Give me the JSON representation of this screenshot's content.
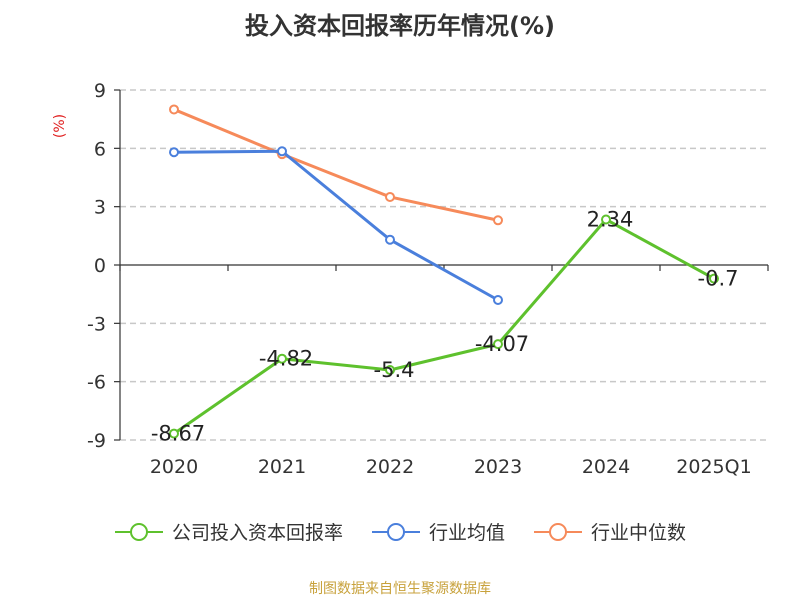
{
  "colors": {
    "company": "#5ec12d",
    "industry_avg": "#4a7fdc",
    "industry_median": "#f68a5a",
    "ylabel": "#e02020"
  },
  "chart_data": {
    "type": "line",
    "title": "投入资本回报率历年情况(%)",
    "ylabel": "(%)",
    "categories": [
      "2020",
      "2021",
      "2022",
      "2023",
      "2024",
      "2025Q1"
    ],
    "yticks": [
      "9",
      "6",
      "3",
      "0",
      "-3",
      "-6",
      "-9"
    ],
    "ylim": [
      -9,
      9
    ],
    "grid": true,
    "legend_position": "bottom",
    "series": [
      {
        "name": "公司投入资本回报率",
        "values": [
          -8.67,
          -4.82,
          -5.4,
          -4.07,
          2.34,
          -0.7
        ],
        "labels": [
          "-8.67",
          "-4.82",
          "-5.4",
          "-4.07",
          "2.34",
          "-0.7"
        ]
      },
      {
        "name": "行业均值",
        "values": [
          5.8,
          5.85,
          1.3,
          -1.8,
          null,
          null
        ]
      },
      {
        "name": "行业中位数",
        "values": [
          8.0,
          5.7,
          3.5,
          2.3,
          null,
          null
        ]
      }
    ],
    "source": "制图数据来自恒生聚源数据库"
  }
}
